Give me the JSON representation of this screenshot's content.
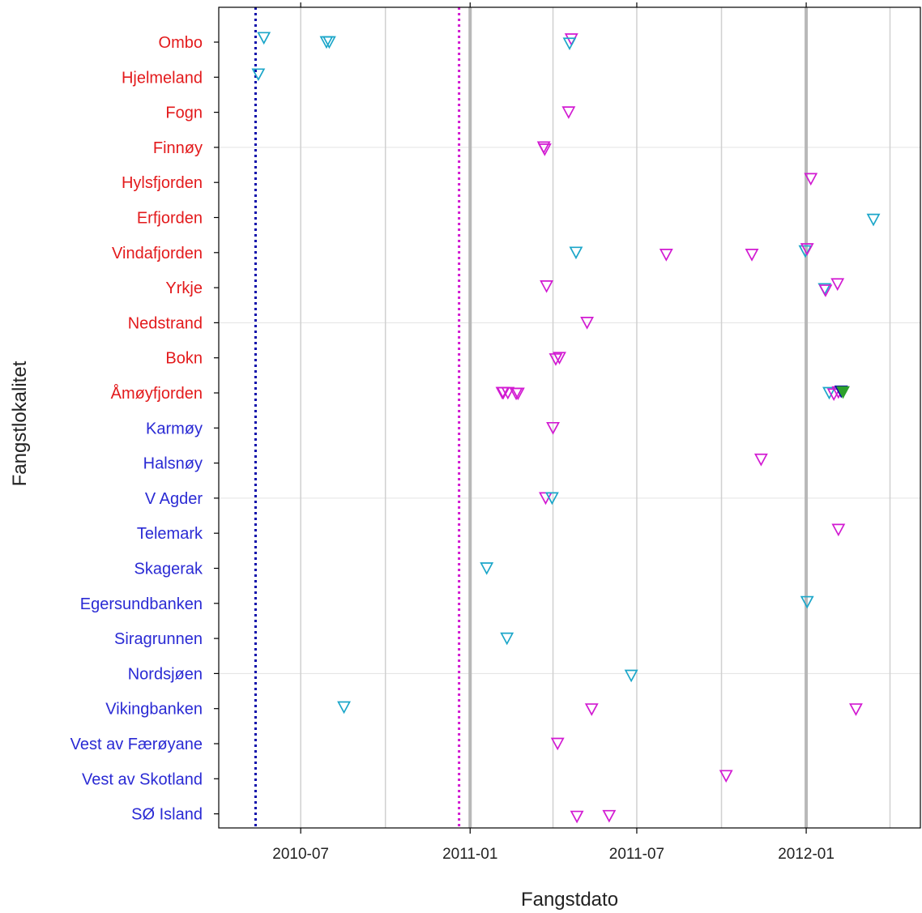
{
  "chart_data": {
    "type": "scatter",
    "title": "",
    "xlabel": "Fangstdato",
    "ylabel": "Fangstlokalitet",
    "x_ticks": [
      "2010-07",
      "2011-01",
      "2011-07",
      "2012-01"
    ],
    "xlim": [
      "2010-04-03",
      "2012-05-04"
    ],
    "grid": true,
    "marker": "open-triangle-down",
    "colors": {
      "label_red": "#e31a1c",
      "label_blue": "#2a2ad4",
      "cyan": "#1ba6c9",
      "magenta": "#d21ad2",
      "green": "#2ca02c",
      "navy": "#0a0aaa",
      "grid": "#d0d0d0",
      "grid_year": "#b8b8b8"
    },
    "reference_lines": [
      {
        "date": "2010-05-13",
        "color": "navy",
        "style": "dotted"
      },
      {
        "date": "2010-12-20",
        "color": "magenta",
        "style": "dotted"
      }
    ],
    "categories": [
      {
        "label": "Ombo",
        "group": "red"
      },
      {
        "label": "Hjelmeland",
        "group": "red"
      },
      {
        "label": "Fogn",
        "group": "red"
      },
      {
        "label": "Finnøy",
        "group": "red"
      },
      {
        "label": "Hylsfjorden",
        "group": "red"
      },
      {
        "label": "Erfjorden",
        "group": "red"
      },
      {
        "label": "Vindafjorden",
        "group": "red"
      },
      {
        "label": "Yrkje",
        "group": "red"
      },
      {
        "label": "Nedstrand",
        "group": "red"
      },
      {
        "label": "Bokn",
        "group": "red"
      },
      {
        "label": "Åmøyfjorden",
        "group": "red"
      },
      {
        "label": "Karmøy",
        "group": "blue"
      },
      {
        "label": "Halsnøy",
        "group": "blue"
      },
      {
        "label": "V Agder",
        "group": "blue"
      },
      {
        "label": "Telemark",
        "group": "blue"
      },
      {
        "label": "Skagerak",
        "group": "blue"
      },
      {
        "label": "Egersundbanken",
        "group": "blue"
      },
      {
        "label": "Siragrunnen",
        "group": "blue"
      },
      {
        "label": "Nordsjøen",
        "group": "blue"
      },
      {
        "label": "Vikingbanken",
        "group": "blue"
      },
      {
        "label": "Vest av Færøyane",
        "group": "blue"
      },
      {
        "label": "Vest av Skotland",
        "group": "blue"
      },
      {
        "label": "SØ Island",
        "group": "blue"
      }
    ],
    "points": [
      {
        "category": "Ombo",
        "date": "2010-05-22",
        "color": "cyan",
        "jitter": -0.12
      },
      {
        "category": "Ombo",
        "date": "2010-07-29",
        "color": "cyan",
        "jitter": 0.0
      },
      {
        "category": "Ombo",
        "date": "2010-08-01",
        "color": "cyan",
        "jitter": 0.0
      },
      {
        "category": "Ombo",
        "date": "2011-04-21",
        "color": "magenta",
        "jitter": -0.08
      },
      {
        "category": "Ombo",
        "date": "2011-04-19",
        "color": "cyan",
        "jitter": 0.04
      },
      {
        "category": "Hjelmeland",
        "date": "2010-05-16",
        "color": "cyan",
        "jitter": -0.08
      },
      {
        "category": "Fogn",
        "date": "2011-04-18",
        "color": "magenta",
        "jitter": 0.0
      },
      {
        "category": "Finnøy",
        "date": "2011-03-22",
        "color": "magenta",
        "jitter": 0.0
      },
      {
        "category": "Finnøy",
        "date": "2011-03-23",
        "color": "magenta",
        "jitter": 0.06
      },
      {
        "category": "Hylsfjorden",
        "date": "2012-01-06",
        "color": "magenta",
        "jitter": -0.1
      },
      {
        "category": "Erfjorden",
        "date": "2012-03-14",
        "color": "cyan",
        "jitter": 0.06
      },
      {
        "category": "Vindafjorden",
        "date": "2011-04-26",
        "color": "cyan",
        "jitter": 0.0
      },
      {
        "category": "Vindafjorden",
        "date": "2011-08-02",
        "color": "magenta",
        "jitter": 0.06
      },
      {
        "category": "Vindafjorden",
        "date": "2011-11-03",
        "color": "magenta",
        "jitter": 0.06
      },
      {
        "category": "Vindafjorden",
        "date": "2011-12-31",
        "color": "cyan",
        "jitter": -0.04
      },
      {
        "category": "Vindafjorden",
        "date": "2012-01-02",
        "color": "magenta",
        "jitter": -0.1
      },
      {
        "category": "Yrkje",
        "date": "2011-03-25",
        "color": "magenta",
        "jitter": -0.04
      },
      {
        "category": "Yrkje",
        "date": "2012-01-21",
        "color": "cyan",
        "jitter": 0.04
      },
      {
        "category": "Yrkje",
        "date": "2012-01-22",
        "color": "magenta",
        "jitter": 0.08
      },
      {
        "category": "Yrkje",
        "date": "2012-02-04",
        "color": "magenta",
        "jitter": -0.1
      },
      {
        "category": "Nedstrand",
        "date": "2011-05-08",
        "color": "magenta",
        "jitter": 0.0
      },
      {
        "category": "Bokn",
        "date": "2011-04-08",
        "color": "magenta",
        "jitter": 0.0
      },
      {
        "category": "Bokn",
        "date": "2011-04-04",
        "color": "magenta",
        "jitter": 0.04
      },
      {
        "category": "Åmøyfjorden",
        "date": "2011-02-05",
        "color": "magenta",
        "jitter": 0.0
      },
      {
        "category": "Åmøyfjorden",
        "date": "2011-02-11",
        "color": "magenta",
        "jitter": 0.0
      },
      {
        "category": "Åmøyfjorden",
        "date": "2011-02-06",
        "color": "magenta",
        "jitter": 0.0
      },
      {
        "category": "Åmøyfjorden",
        "date": "2011-02-22",
        "color": "magenta",
        "jitter": 0.02
      },
      {
        "category": "Åmøyfjorden",
        "date": "2011-02-20",
        "color": "magenta",
        "jitter": 0.02
      },
      {
        "category": "Åmøyfjorden",
        "date": "2012-01-26",
        "color": "cyan",
        "jitter": 0.0
      },
      {
        "category": "Åmøyfjorden",
        "date": "2012-01-31",
        "color": "magenta",
        "jitter": 0.04
      },
      {
        "category": "Åmøyfjorden",
        "date": "2012-02-05",
        "color": "magenta",
        "jitter": -0.02
      },
      {
        "category": "Åmøyfjorden",
        "date": "2012-02-08",
        "color": "navy",
        "jitter": -0.04
      },
      {
        "category": "Åmøyfjorden",
        "date": "2012-02-10",
        "color": "green",
        "jitter": -0.02
      },
      {
        "category": "Karmøy",
        "date": "2011-04-01",
        "color": "magenta",
        "jitter": 0.0
      },
      {
        "category": "Halsnøy",
        "date": "2011-11-13",
        "color": "magenta",
        "jitter": -0.1
      },
      {
        "category": "V Agder",
        "date": "2011-03-24",
        "color": "magenta",
        "jitter": 0.0
      },
      {
        "category": "V Agder",
        "date": "2011-03-31",
        "color": "cyan",
        "jitter": 0.0
      },
      {
        "category": "Telemark",
        "date": "2012-02-05",
        "color": "magenta",
        "jitter": -0.1
      },
      {
        "category": "Skagerak",
        "date": "2011-01-19",
        "color": "cyan",
        "jitter": 0.0
      },
      {
        "category": "Egersundbanken",
        "date": "2012-01-02",
        "color": "cyan",
        "jitter": -0.04
      },
      {
        "category": "Siragrunnen",
        "date": "2011-02-10",
        "color": "cyan",
        "jitter": 0.0
      },
      {
        "category": "Nordsjøen",
        "date": "2011-06-25",
        "color": "cyan",
        "jitter": 0.06
      },
      {
        "category": "Vikingbanken",
        "date": "2010-08-17",
        "color": "cyan",
        "jitter": -0.04
      },
      {
        "category": "Vikingbanken",
        "date": "2011-05-13",
        "color": "magenta",
        "jitter": 0.02
      },
      {
        "category": "Vikingbanken",
        "date": "2012-02-24",
        "color": "magenta",
        "jitter": 0.02
      },
      {
        "category": "Vest av Færøyane",
        "date": "2011-04-06",
        "color": "magenta",
        "jitter": 0.0
      },
      {
        "category": "Vest av Skotland",
        "date": "2011-10-06",
        "color": "magenta",
        "jitter": -0.08
      },
      {
        "category": "SØ Island",
        "date": "2011-04-27",
        "color": "magenta",
        "jitter": 0.08
      },
      {
        "category": "SØ Island",
        "date": "2011-06-01",
        "color": "magenta",
        "jitter": 0.06
      }
    ]
  }
}
